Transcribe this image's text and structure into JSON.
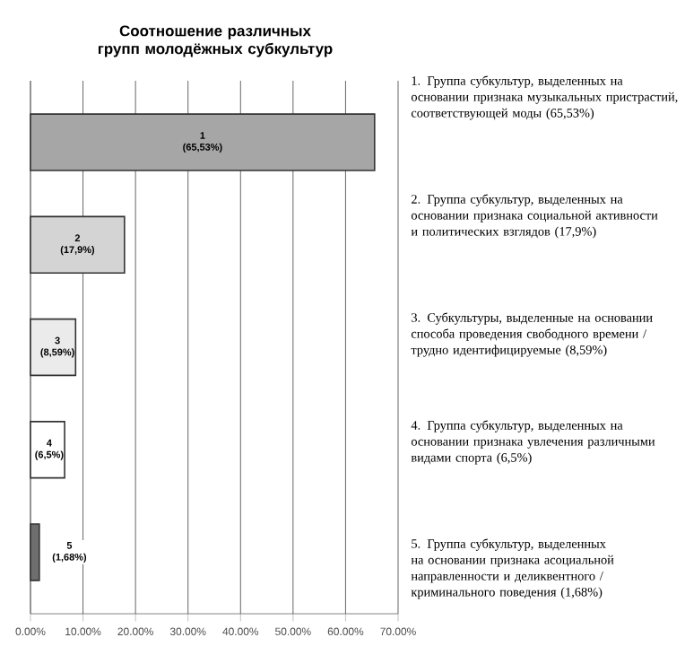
{
  "chart_data": {
    "type": "bar",
    "orientation": "horizontal",
    "title": "Соотношение различных групп молодёжных субкультур",
    "categories": [
      "1",
      "2",
      "3",
      "4",
      "5"
    ],
    "values": [
      65.53,
      17.9,
      8.59,
      6.5,
      1.68
    ],
    "value_labels": [
      "(65,53%)",
      "(17,9%)",
      "(8,59%)",
      "(6,5%)",
      "(1,68%)"
    ],
    "colors": [
      "#a6a6a6",
      "#d4d4d4",
      "#ebebeb",
      "#ffffff",
      "#6e6e6e"
    ],
    "xlim": [
      0,
      70
    ],
    "xticks": [
      {
        "value": 0,
        "label": "0.00%"
      },
      {
        "value": 10,
        "label": "10.00%"
      },
      {
        "value": 20,
        "label": "20.00%"
      },
      {
        "value": 30,
        "label": "30.00%"
      },
      {
        "value": 40,
        "label": "40.00%"
      },
      {
        "value": 50,
        "label": "50.00%"
      },
      {
        "value": 60,
        "label": "60.00%"
      },
      {
        "value": 70,
        "label": "70.00%"
      }
    ],
    "grid": "x",
    "annotations": [
      "1. Группа субкультур, выделенных на основании признака музыкальных пристрастий, соответствующей моды (65,53%)",
      "2. Группа субкультур, выделенных на основании признака социальной активности и политических взглядов (17,9%)",
      "3. Субкультуры, выделенные на основании способа проведения свободного времени / трудно идентифицируемые (8,59%)",
      "4. Группа субкультур, выделенных на основании признака увлечения различными видами спорта (6,5%)",
      "5. Группа субкультур, выделенных на основании признака асоциальной направленности и деликвентного / криминального поведения (1,68%)"
    ]
  }
}
